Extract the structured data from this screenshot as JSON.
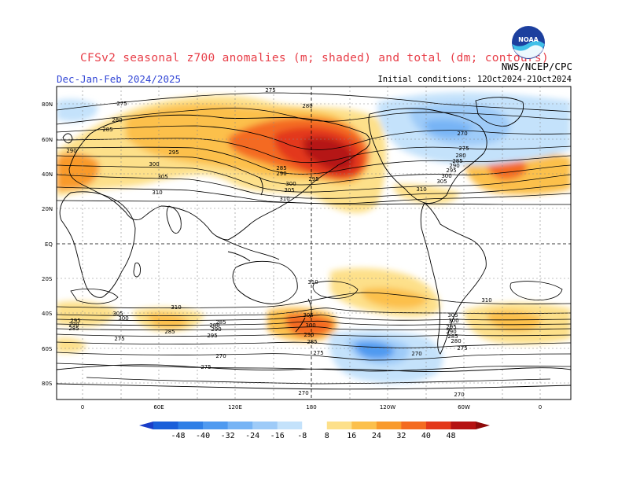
{
  "header": {
    "title": "CFSv2 seasonal z700 anomalies (m; shaded) and total (dm; contours)",
    "season": "Dec-Jan-Feb 2024/2025",
    "agency": "NWS/NCEP/CPC",
    "initial_conditions": "Initial conditions: 12Oct2024-21Oct2024",
    "logo": "NOAA"
  },
  "axes": {
    "lat_labels": [
      "80N",
      "60N",
      "40N",
      "20N",
      "EQ",
      "20S",
      "40S",
      "60S",
      "80S"
    ],
    "lon_labels": [
      "0",
      "60E",
      "120E",
      "180",
      "120W",
      "60W",
      "0"
    ]
  },
  "contour_labels": [
    {
      "text": "275",
      "pos": "top-center"
    },
    {
      "text": "275",
      "pos": "arctic-west"
    },
    {
      "text": "280",
      "pos": "siberia"
    },
    {
      "text": "280",
      "pos": "europe"
    },
    {
      "text": "285",
      "pos": "europe-north"
    },
    {
      "text": "290",
      "pos": "nw-atlantic"
    },
    {
      "text": "295",
      "pos": "asia"
    },
    {
      "text": "300",
      "pos": "asia-south"
    },
    {
      "text": "305",
      "pos": "himalaya"
    },
    {
      "text": "310",
      "pos": "india"
    },
    {
      "text": "285",
      "pos": "japan"
    },
    {
      "text": "290",
      "pos": "japan-south"
    },
    {
      "text": "300",
      "pos": "nw-pacific"
    },
    {
      "text": "305",
      "pos": "pacific"
    },
    {
      "text": "310",
      "pos": "pacific-south"
    },
    {
      "text": "295",
      "pos": "n-pacific"
    },
    {
      "text": "270",
      "pos": "canada"
    },
    {
      "text": "275",
      "pos": "canada-south"
    },
    {
      "text": "280",
      "pos": "n-america-1"
    },
    {
      "text": "285",
      "pos": "n-america-2"
    },
    {
      "text": "290",
      "pos": "n-america-3"
    },
    {
      "text": "295",
      "pos": "n-america-4"
    },
    {
      "text": "300",
      "pos": "n-america-5"
    },
    {
      "text": "305",
      "pos": "n-america-6"
    },
    {
      "text": "310",
      "pos": "mexico"
    },
    {
      "text": "310",
      "pos": "s-pacific"
    },
    {
      "text": "310",
      "pos": "s-indian"
    },
    {
      "text": "305",
      "pos": "s-indian-2"
    },
    {
      "text": "300",
      "pos": "s-indian-3"
    },
    {
      "text": "295",
      "pos": "s-atl-1"
    },
    {
      "text": "290",
      "pos": "s-atl-2"
    },
    {
      "text": "285",
      "pos": "s-atl-3"
    },
    {
      "text": "285",
      "pos": "s-indian-4"
    },
    {
      "text": "280",
      "pos": "s-indian-5"
    },
    {
      "text": "275",
      "pos": "s-atl-4"
    },
    {
      "text": "285",
      "pos": "s-indian-6"
    },
    {
      "text": "290",
      "pos": "s-indian-7"
    },
    {
      "text": "295",
      "pos": "s-indian-8"
    },
    {
      "text": "305",
      "pos": "nz-1"
    },
    {
      "text": "300",
      "pos": "nz-2"
    },
    {
      "text": "295",
      "pos": "nz-3"
    },
    {
      "text": "285",
      "pos": "nz-4"
    },
    {
      "text": "275",
      "pos": "s-pac-1"
    },
    {
      "text": "270",
      "pos": "s-pac-2"
    },
    {
      "text": "305",
      "pos": "s-america-1"
    },
    {
      "text": "300",
      "pos": "s-america-2"
    },
    {
      "text": "295",
      "pos": "s-america-3"
    },
    {
      "text": "290",
      "pos": "s-america-4"
    },
    {
      "text": "285",
      "pos": "s-america-5"
    },
    {
      "text": "280",
      "pos": "s-america-6"
    },
    {
      "text": "275",
      "pos": "drake"
    },
    {
      "text": "310",
      "pos": "s-atlantic"
    },
    {
      "text": "275",
      "pos": "antarctica-1"
    },
    {
      "text": "270",
      "pos": "antarctica-2"
    },
    {
      "text": "270",
      "pos": "antarctica-3"
    },
    {
      "text": "270",
      "pos": "antarctica-4"
    }
  ],
  "colorbar": {
    "labels": [
      "-48",
      "-40",
      "-32",
      "-24",
      "-16",
      "-8",
      "8",
      "16",
      "24",
      "32",
      "40",
      "48"
    ],
    "colors": [
      "#1a5fd9",
      "#2f7fe6",
      "#4f9af0",
      "#77b4f5",
      "#9ecbf8",
      "#c4e2fb",
      "#ffffff",
      "#fde08a",
      "#fcc04c",
      "#f99a2c",
      "#f46b20",
      "#e3381a",
      "#b51212"
    ]
  }
}
